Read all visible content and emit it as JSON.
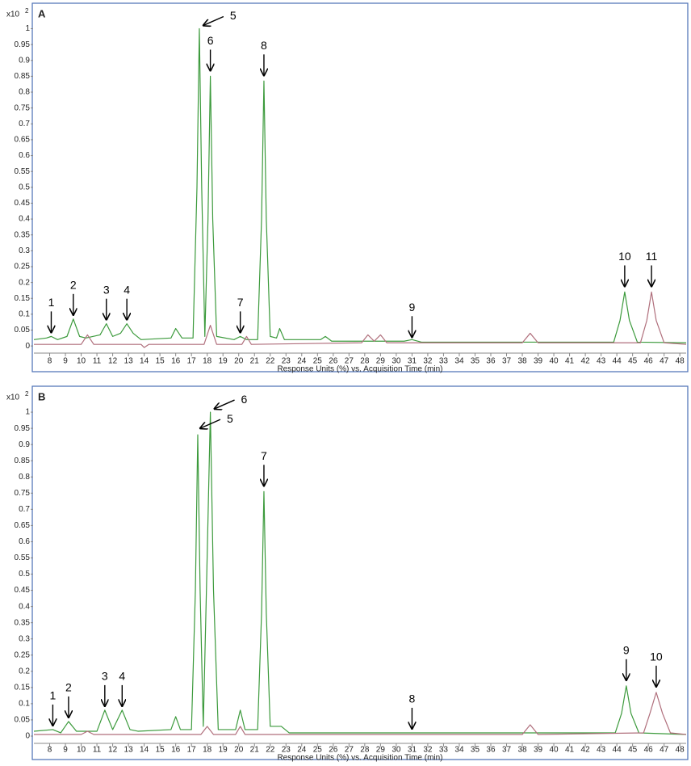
{
  "chart_data": [
    {
      "type": "line",
      "panel_label": "A",
      "y_scale_label": "x10",
      "y_scale_exponent": "2",
      "x_label": "Response Units (%) vs. Acquisition Time (min)",
      "xlim": [
        7,
        48.4
      ],
      "ylim": [
        -0.02,
        1.07
      ],
      "xticks": [
        8,
        9,
        10,
        11,
        12,
        13,
        14,
        15,
        16,
        17,
        18,
        19,
        20,
        21,
        22,
        23,
        24,
        25,
        26,
        27,
        28,
        29,
        30,
        31,
        32,
        33,
        34,
        35,
        36,
        37,
        38,
        39,
        40,
        41,
        42,
        43,
        44,
        45,
        46,
        47,
        48
      ],
      "yticks": [
        0,
        0.05,
        0.1,
        0.15,
        0.2,
        0.25,
        0.3,
        0.35,
        0.4,
        0.45,
        0.5,
        0.55,
        0.6,
        0.65,
        0.7,
        0.75,
        0.8,
        0.85,
        0.9,
        0.95,
        1
      ],
      "series": [
        {
          "color": "#3c9a3c",
          "x": [
            7,
            7.8,
            8.1,
            8.5,
            9.1,
            9.5,
            9.9,
            10.3,
            11.2,
            11.6,
            12.0,
            12.5,
            12.9,
            13.3,
            13.8,
            15.7,
            16.0,
            16.4,
            17.1,
            17.35,
            17.5,
            17.65,
            17.85,
            18.05,
            18.2,
            18.35,
            18.6,
            19.7,
            20.1,
            20.5,
            21.2,
            21.45,
            21.6,
            21.75,
            22.0,
            22.4,
            22.6,
            22.9,
            25.2,
            25.5,
            25.9,
            30.5,
            31.0,
            31.6,
            43.8,
            44.2,
            44.5,
            44.8,
            45.3,
            48.4
          ],
          "values": [
            0.02,
            0.025,
            0.03,
            0.02,
            0.03,
            0.085,
            0.03,
            0.025,
            0.035,
            0.07,
            0.03,
            0.04,
            0.07,
            0.04,
            0.02,
            0.025,
            0.055,
            0.025,
            0.025,
            0.5,
            1.0,
            0.5,
            0.03,
            0.4,
            0.85,
            0.4,
            0.03,
            0.02,
            0.03,
            0.02,
            0.02,
            0.4,
            0.835,
            0.4,
            0.03,
            0.025,
            0.055,
            0.02,
            0.02,
            0.03,
            0.015,
            0.015,
            0.02,
            0.012,
            0.012,
            0.08,
            0.17,
            0.08,
            0.012,
            0.01
          ]
        },
        {
          "color": "#b06f7c",
          "x": [
            7,
            10.0,
            10.4,
            10.8,
            13.8,
            14.0,
            14.3,
            17.8,
            18.2,
            18.6,
            20.2,
            20.5,
            20.8,
            27.8,
            28.2,
            28.6,
            29.0,
            29.4,
            38.0,
            38.5,
            39.0,
            45.5,
            45.9,
            46.2,
            46.5,
            47.0,
            48.4
          ],
          "values": [
            0.005,
            0.005,
            0.035,
            0.005,
            0.005,
            -0.005,
            0.005,
            0.005,
            0.065,
            0.005,
            0.005,
            0.03,
            0.005,
            0.01,
            0.035,
            0.015,
            0.035,
            0.01,
            0.01,
            0.04,
            0.01,
            0.01,
            0.08,
            0.17,
            0.08,
            0.01,
            0.005
          ]
        }
      ],
      "annotations": [
        {
          "text": "1",
          "x": 8.1,
          "y": 0.035
        },
        {
          "text": "2",
          "x": 9.5,
          "y": 0.09
        },
        {
          "text": "3",
          "x": 11.6,
          "y": 0.075
        },
        {
          "text": "4",
          "x": 12.9,
          "y": 0.075
        },
        {
          "text": "5",
          "x": 17.6,
          "y": 1.0
        },
        {
          "text": "6",
          "x": 18.2,
          "y": 0.86
        },
        {
          "text": "7",
          "x": 20.1,
          "y": 0.035
        },
        {
          "text": "8",
          "x": 21.6,
          "y": 0.845
        },
        {
          "text": "9",
          "x": 31.0,
          "y": 0.02
        },
        {
          "text": "10",
          "x": 44.5,
          "y": 0.18
        },
        {
          "text": "11",
          "x": 46.2,
          "y": 0.18
        }
      ]
    },
    {
      "type": "line",
      "panel_label": "B",
      "y_scale_label": "x10",
      "y_scale_exponent": "2",
      "x_label": "Response Units (%) vs. Acquisition Time (min)",
      "xlim": [
        7,
        48.4
      ],
      "ylim": [
        -0.02,
        1.07
      ],
      "xticks": [
        8,
        9,
        10,
        11,
        12,
        13,
        14,
        15,
        16,
        17,
        18,
        19,
        20,
        21,
        22,
        23,
        24,
        25,
        26,
        27,
        28,
        29,
        30,
        31,
        32,
        33,
        34,
        35,
        36,
        37,
        38,
        39,
        40,
        41,
        42,
        43,
        44,
        45,
        46,
        47,
        48
      ],
      "yticks": [
        0,
        0.05,
        0.1,
        0.15,
        0.2,
        0.25,
        0.3,
        0.35,
        0.4,
        0.45,
        0.5,
        0.55,
        0.6,
        0.65,
        0.7,
        0.75,
        0.8,
        0.85,
        0.9,
        0.95,
        1
      ],
      "series": [
        {
          "color": "#3c9a3c",
          "x": [
            7,
            8.2,
            8.7,
            9.2,
            9.7,
            11.0,
            11.5,
            12.0,
            12.6,
            13.1,
            13.6,
            15.7,
            16.0,
            16.3,
            17.0,
            17.25,
            17.4,
            17.55,
            17.75,
            17.95,
            18.2,
            18.4,
            18.7,
            19.8,
            20.1,
            20.4,
            21.2,
            21.45,
            21.6,
            21.75,
            22.0,
            22.7,
            23.2,
            43.9,
            44.3,
            44.6,
            44.9,
            45.4,
            48.4
          ],
          "values": [
            0.015,
            0.02,
            0.01,
            0.045,
            0.015,
            0.015,
            0.08,
            0.02,
            0.08,
            0.02,
            0.015,
            0.02,
            0.06,
            0.02,
            0.02,
            0.45,
            0.93,
            0.45,
            0.03,
            0.45,
            1.0,
            0.45,
            0.02,
            0.02,
            0.08,
            0.02,
            0.02,
            0.38,
            0.755,
            0.38,
            0.03,
            0.03,
            0.01,
            0.01,
            0.07,
            0.155,
            0.07,
            0.01,
            0.005
          ]
        },
        {
          "color": "#b06f7c",
          "x": [
            7,
            10.0,
            10.4,
            10.8,
            17.6,
            18.0,
            18.4,
            19.8,
            20.1,
            20.4,
            38.0,
            38.5,
            39.0,
            45.7,
            46.1,
            46.5,
            46.9,
            47.4,
            48.4
          ],
          "values": [
            0.005,
            0.005,
            0.015,
            0.005,
            0.005,
            0.03,
            0.005,
            0.005,
            0.03,
            0.005,
            0.005,
            0.035,
            0.005,
            0.01,
            0.07,
            0.135,
            0.07,
            0.01,
            0.005
          ]
        }
      ],
      "annotations": [
        {
          "text": "1",
          "x": 8.2,
          "y": 0.025
        },
        {
          "text": "2",
          "x": 9.2,
          "y": 0.05
        },
        {
          "text": "3",
          "x": 11.5,
          "y": 0.085
        },
        {
          "text": "4",
          "x": 12.6,
          "y": 0.085
        },
        {
          "text": "5",
          "x": 17.4,
          "y": 0.94
        },
        {
          "text": "6",
          "x": 18.3,
          "y": 1.0
        },
        {
          "text": "7",
          "x": 21.6,
          "y": 0.765
        },
        {
          "text": "8",
          "x": 31.0,
          "y": 0.015
        },
        {
          "text": "9",
          "x": 44.6,
          "y": 0.165
        },
        {
          "text": "10",
          "x": 46.5,
          "y": 0.145
        }
      ]
    }
  ]
}
